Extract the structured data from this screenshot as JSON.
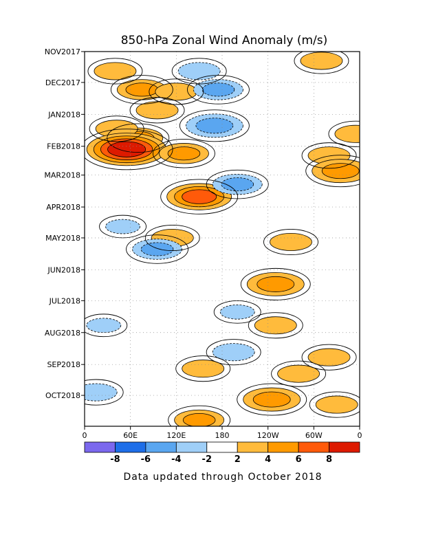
{
  "chart_data": {
    "type": "heatmap",
    "title": "850-hPa Zonal Wind Anomaly (m/s)",
    "footer": "Data updated through October 2018",
    "x_tick_labels": [
      "0",
      "60E",
      "120E",
      "180",
      "120W",
      "60W",
      "0"
    ],
    "y_tick_labels": [
      "NOV2017",
      "DEC2017",
      "JAN2018",
      "FEB2018",
      "MAR2018",
      "APR2018",
      "MAY2018",
      "JUN2018",
      "JUL2018",
      "AUG2018",
      "SEP2018",
      "OCT2018"
    ],
    "xlim": [
      0,
      360
    ],
    "ylim": [
      "2017-11-01",
      "2018-10-31"
    ],
    "units": "m/s",
    "contour_levels": [
      -8,
      -6,
      -4,
      -2,
      2,
      4,
      6,
      8
    ],
    "colorbar": {
      "labels": [
        "-8",
        "-6",
        "-4",
        "-2",
        "2",
        "4",
        "6",
        "8"
      ],
      "colors": [
        "#7b68ee",
        "#1e6ee8",
        "#5aa6f0",
        "#9fcff8",
        "#ffffff",
        "#ffbb3c",
        "#ff9a00",
        "#ff5a0a",
        "#dd1a00"
      ]
    },
    "anomaly_features": [
      {
        "lon": 40,
        "date": "2017-11-20",
        "value": 3
      },
      {
        "lon": 75,
        "date": "2017-12-08",
        "value": 4
      },
      {
        "lon": 120,
        "date": "2017-12-10",
        "value": 3
      },
      {
        "lon": 150,
        "date": "2017-11-20",
        "value": -3
      },
      {
        "lon": 175,
        "date": "2017-12-08",
        "value": -4
      },
      {
        "lon": 310,
        "date": "2017-11-10",
        "value": 3
      },
      {
        "lon": 95,
        "date": "2017-12-28",
        "value": 3
      },
      {
        "lon": 170,
        "date": "2018-01-12",
        "value": -5
      },
      {
        "lon": 70,
        "date": "2018-01-24",
        "value": 4
      },
      {
        "lon": 42,
        "date": "2018-01-15",
        "value": 3
      },
      {
        "lon": 55,
        "date": "2018-02-04",
        "value": 8
      },
      {
        "lon": 130,
        "date": "2018-02-08",
        "value": 4
      },
      {
        "lon": 320,
        "date": "2018-02-10",
        "value": 3
      },
      {
        "lon": 355,
        "date": "2018-01-20",
        "value": 3
      },
      {
        "lon": 150,
        "date": "2018-03-22",
        "value": 6
      },
      {
        "lon": 200,
        "date": "2018-03-10",
        "value": -4
      },
      {
        "lon": 335,
        "date": "2018-02-25",
        "value": 5
      },
      {
        "lon": 50,
        "date": "2018-04-20",
        "value": -2
      },
      {
        "lon": 115,
        "date": "2018-05-01",
        "value": 3
      },
      {
        "lon": 95,
        "date": "2018-05-12",
        "value": -4
      },
      {
        "lon": 250,
        "date": "2018-06-15",
        "value": 5
      },
      {
        "lon": 270,
        "date": "2018-05-05",
        "value": 3
      },
      {
        "lon": 25,
        "date": "2018-07-25",
        "value": -2
      },
      {
        "lon": 200,
        "date": "2018-07-12",
        "value": -2
      },
      {
        "lon": 250,
        "date": "2018-07-25",
        "value": 3
      },
      {
        "lon": 195,
        "date": "2018-08-20",
        "value": -3
      },
      {
        "lon": 155,
        "date": "2018-09-05",
        "value": 3
      },
      {
        "lon": 280,
        "date": "2018-09-10",
        "value": 3
      },
      {
        "lon": 320,
        "date": "2018-08-25",
        "value": 3
      },
      {
        "lon": 15,
        "date": "2018-09-28",
        "value": -3
      },
      {
        "lon": 245,
        "date": "2018-10-05",
        "value": 5
      },
      {
        "lon": 330,
        "date": "2018-10-10",
        "value": 3
      },
      {
        "lon": 150,
        "date": "2018-10-25",
        "value": 4
      }
    ]
  }
}
